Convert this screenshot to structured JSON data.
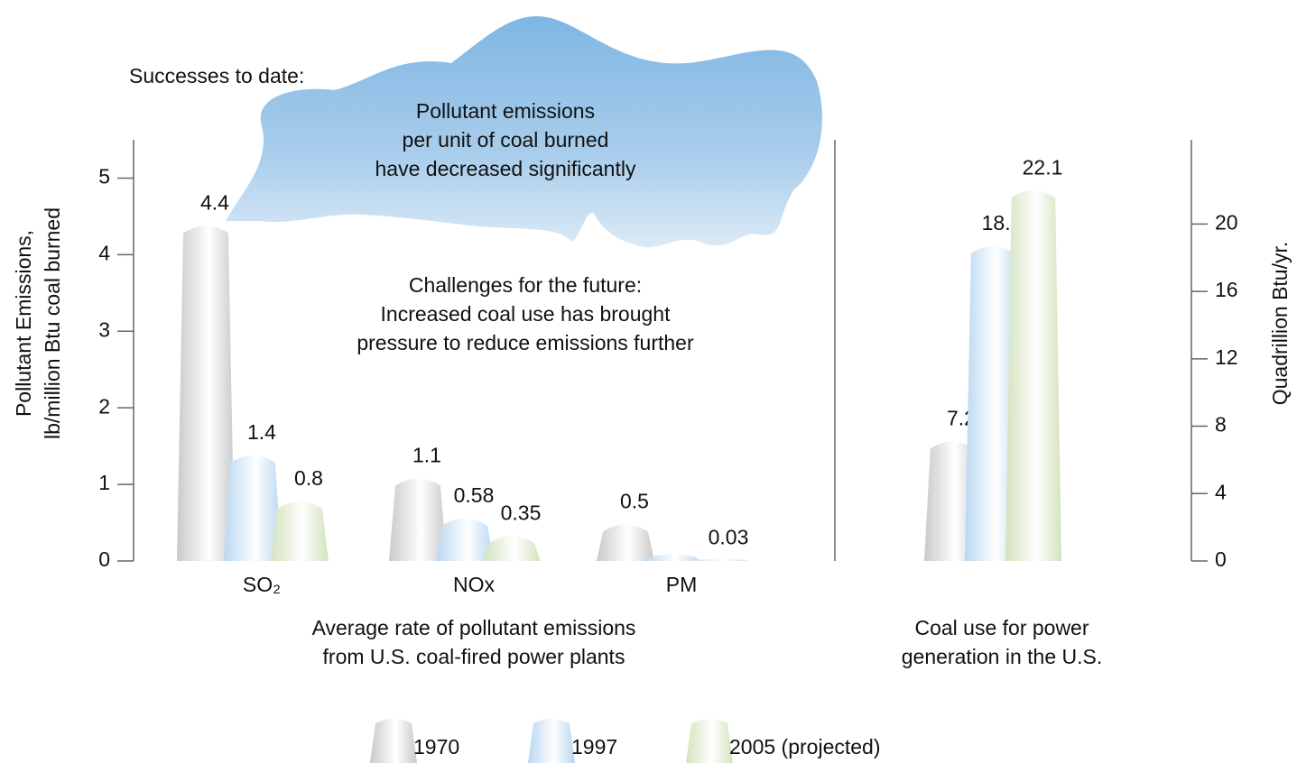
{
  "annotations": {
    "successes": "Successes to date:",
    "cloud": [
      "Pollutant emissions",
      "per unit of coal burned",
      "have decreased significantly"
    ],
    "challenges": [
      "Challenges for the future:",
      "Increased coal use has brought",
      "pressure to reduce emissions further"
    ]
  },
  "chart_data": [
    {
      "type": "bar",
      "categories": [
        "SO₂",
        "NOx",
        "PM"
      ],
      "series": [
        {
          "name": "1970",
          "color": "#c9c9c9",
          "values": [
            4.4,
            1.1,
            0.5
          ]
        },
        {
          "name": "1997",
          "color": "#b9d7f2",
          "values": [
            1.4,
            0.58,
            0.1
          ],
          "value_labels": [
            "1.4",
            "0.58",
            null
          ]
        },
        {
          "name": "2005 (projected)",
          "color": "#d3e3bd",
          "values": [
            0.8,
            0.35,
            0.03
          ]
        }
      ],
      "ylabel": [
        "Pollutant Emissions,",
        "lb/million Btu coal burned"
      ],
      "xlabel": [
        "Average rate of pollutant emissions",
        "from U.S. coal-fired power plants"
      ],
      "ylim": [
        0,
        5.5
      ],
      "yticks": [
        0,
        1,
        2,
        3,
        4,
        5
      ]
    },
    {
      "type": "bar",
      "categories": [
        null
      ],
      "series": [
        {
          "name": "1970",
          "color": "#c9c9c9",
          "values": [
            7.2
          ]
        },
        {
          "name": "1997",
          "color": "#b9d7f2",
          "values": [
            18.8
          ]
        },
        {
          "name": "2005 (projected)",
          "color": "#d3e3bd",
          "values": [
            22.1
          ]
        }
      ],
      "ylabel": "Quadrillion Btu/yr.",
      "xlabel": [
        "Coal use for power",
        "generation in the U.S."
      ],
      "ylim": [
        0,
        25
      ],
      "yticks": [
        0,
        4,
        8,
        12,
        16,
        20
      ]
    }
  ]
}
